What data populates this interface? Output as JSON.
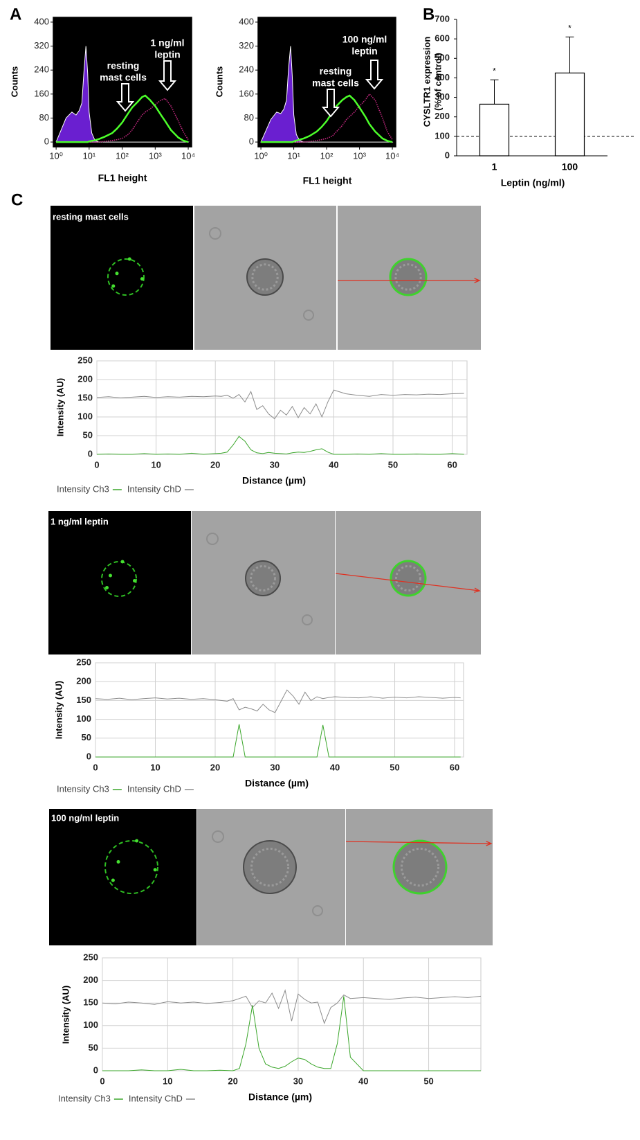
{
  "panel_labels": [
    "A",
    "B",
    "C"
  ],
  "image_captions": [
    "resting mast cells",
    "1 ng/ml leptin",
    "100 ng/ml leptin"
  ],
  "chart_data": [
    {
      "type": "line",
      "xscale": "log",
      "background": "#000000",
      "ylabel": "Counts",
      "xlabel": "FL1 height",
      "x": [
        1,
        2,
        3,
        4,
        5,
        6,
        7,
        8,
        9,
        10,
        12,
        15,
        20,
        30,
        50,
        70,
        100,
        150,
        200,
        300,
        400,
        500,
        700,
        1000,
        1500,
        2000,
        3000,
        5000,
        7000,
        10000
      ],
      "series": [
        {
          "color": "#6a1fd0",
          "fill": true,
          "values": [
            0,
            80,
            100,
            90,
            105,
            130,
            240,
            320,
            230,
            100,
            30,
            5,
            0,
            0,
            0,
            0,
            0,
            0,
            0,
            0,
            0,
            0,
            0,
            0,
            0,
            0,
            0,
            0,
            0,
            0
          ]
        },
        {
          "color": "#c0287e",
          "dash": true,
          "values": [
            0,
            0,
            0,
            0,
            0,
            0,
            0,
            0,
            0,
            0,
            0,
            0,
            0,
            2,
            5,
            8,
            12,
            25,
            40,
            70,
            90,
            100,
            110,
            125,
            140,
            145,
            120,
            70,
            35,
            8
          ]
        },
        {
          "color": "#4cff2a",
          "values": [
            0,
            0,
            0,
            0,
            0,
            0,
            0,
            0,
            0,
            2,
            4,
            6,
            10,
            18,
            30,
            45,
            65,
            95,
            115,
            135,
            150,
            155,
            140,
            120,
            90,
            70,
            40,
            15,
            5,
            0
          ]
        }
      ],
      "xlim": [
        0.82,
        12700
      ],
      "ylim": [
        -16,
        416
      ],
      "xticks": [
        {
          "value": 1,
          "label": "10⁰"
        },
        {
          "value": 10,
          "label": "10¹"
        },
        {
          "value": 100,
          "label": "10²"
        },
        {
          "value": 1000,
          "label": "10³"
        },
        {
          "value": 10000,
          "label": "10⁴"
        }
      ],
      "yticks": [
        0,
        80,
        160,
        240,
        320,
        400
      ],
      "annotations": [
        [
          "resting",
          "mast cells"
        ],
        [
          "1 ng/ml",
          "leptin"
        ]
      ]
    },
    {
      "type": "line",
      "xscale": "log",
      "background": "#000000",
      "ylabel": "Counts",
      "xlabel": "FL1 height",
      "x": [
        1,
        2,
        3,
        4,
        5,
        6,
        7,
        8,
        9,
        10,
        12,
        15,
        20,
        30,
        50,
        70,
        100,
        150,
        200,
        300,
        400,
        500,
        700,
        1000,
        1500,
        2000,
        3000,
        5000,
        7000,
        10000
      ],
      "series": [
        {
          "color": "#6a1fd0",
          "fill": true,
          "values": [
            0,
            75,
            100,
            95,
            110,
            140,
            250,
            320,
            220,
            90,
            25,
            5,
            0,
            0,
            0,
            0,
            0,
            0,
            0,
            0,
            0,
            0,
            0,
            0,
            0,
            0,
            0,
            0,
            0,
            0
          ]
        },
        {
          "color": "#c0287e",
          "dash": true,
          "values": [
            0,
            0,
            0,
            0,
            0,
            0,
            0,
            0,
            0,
            0,
            0,
            0,
            0,
            2,
            5,
            8,
            12,
            20,
            35,
            55,
            75,
            85,
            100,
            120,
            140,
            160,
            140,
            80,
            35,
            8
          ]
        },
        {
          "color": "#4cff2a",
          "values": [
            0,
            0,
            0,
            0,
            0,
            0,
            0,
            0,
            0,
            2,
            5,
            8,
            12,
            20,
            35,
            50,
            70,
            100,
            120,
            140,
            150,
            155,
            140,
            115,
            85,
            60,
            35,
            12,
            4,
            0
          ]
        }
      ],
      "xlim": [
        0.82,
        12700
      ],
      "ylim": [
        -16,
        416
      ],
      "xticks": [
        {
          "value": 1,
          "label": "10⁰"
        },
        {
          "value": 10,
          "label": "10¹"
        },
        {
          "value": 100,
          "label": "10²"
        },
        {
          "value": 1000,
          "label": "10³"
        },
        {
          "value": 10000,
          "label": "10⁴"
        }
      ],
      "yticks": [
        0,
        80,
        160,
        240,
        320,
        400
      ],
      "annotations": [
        [
          "100 ng/ml",
          "leptin"
        ],
        [
          "resting",
          "mast cells"
        ]
      ]
    },
    {
      "type": "bar",
      "ylabel": [
        "CYSLTR1 expression",
        "(% of control)"
      ],
      "xlabel": "Leptin (ng/ml)",
      "categories": [
        "1",
        "100"
      ],
      "values": [
        265,
        425
      ],
      "errors": [
        125,
        185
      ],
      "significance_labels": [
        "*",
        "*"
      ],
      "reference_line": 100,
      "color": "#ffffff",
      "edgecolor": "#000000",
      "ylim": [
        0,
        700
      ],
      "yticks": [
        0,
        100,
        200,
        300,
        400,
        500,
        600,
        700
      ]
    },
    {
      "type": "line",
      "grid": true,
      "ylabel": "Intensity (AU)",
      "xlabel": "Distance (µm)",
      "x": [
        0,
        2,
        4,
        6,
        8,
        10,
        12,
        14,
        16,
        18,
        20,
        21,
        22,
        23,
        24,
        25,
        26,
        27,
        28,
        29,
        30,
        31,
        32,
        33,
        34,
        35,
        36,
        37,
        38,
        39,
        40,
        42,
        44,
        46,
        48,
        50,
        52,
        54,
        56,
        58,
        60,
        62
      ],
      "series": [
        {
          "name": "Intensity Ch3",
          "color": "#3aa62a",
          "values": [
            0,
            1,
            0,
            0,
            2,
            0,
            1,
            0,
            3,
            0,
            2,
            3,
            6,
            25,
            48,
            35,
            12,
            4,
            2,
            5,
            3,
            2,
            1,
            4,
            6,
            5,
            8,
            12,
            15,
            6,
            0,
            0,
            1,
            0,
            2,
            0,
            0,
            1,
            0,
            0,
            2,
            0
          ]
        },
        {
          "name": "Intensity ChD",
          "color": "#8c8c8c",
          "values": [
            152,
            154,
            151,
            153,
            155,
            152,
            154,
            153,
            155,
            154,
            156,
            155,
            158,
            150,
            160,
            140,
            168,
            120,
            130,
            108,
            95,
            118,
            105,
            128,
            98,
            125,
            108,
            135,
            100,
            140,
            172,
            162,
            158,
            155,
            160,
            158,
            160,
            159,
            161,
            160,
            162,
            163
          ]
        }
      ],
      "xlim": [
        0,
        62.5
      ],
      "ylim": [
        0,
        250
      ],
      "xticks": [
        0,
        10,
        20,
        30,
        40,
        50,
        60
      ],
      "yticks": [
        0,
        50,
        100,
        150,
        200,
        250
      ]
    },
    {
      "type": "line",
      "grid": true,
      "ylabel": "Intensity (AU)",
      "xlabel": "Distance (µm)",
      "x": [
        0,
        2,
        4,
        6,
        8,
        10,
        12,
        14,
        16,
        18,
        20,
        21,
        22,
        23,
        24,
        25,
        26,
        27,
        28,
        29,
        30,
        31,
        32,
        33,
        34,
        35,
        36,
        37,
        38,
        39,
        40,
        42,
        44,
        46,
        48,
        50,
        52,
        54,
        56,
        58,
        60,
        61
      ],
      "series": [
        {
          "name": "Intensity Ch3",
          "color": "#3aa62a",
          "values": [
            0,
            0,
            0,
            0,
            0,
            0,
            0,
            0,
            0,
            0,
            0,
            0,
            0,
            0,
            87,
            0,
            0,
            0,
            0,
            0,
            0,
            0,
            0,
            0,
            0,
            0,
            0,
            0,
            85,
            0,
            0,
            0,
            0,
            0,
            0,
            0,
            0,
            0,
            0,
            0,
            0,
            0
          ]
        },
        {
          "name": "Intensity ChD",
          "color": "#8c8c8c",
          "values": [
            155,
            153,
            156,
            152,
            155,
            157,
            154,
            156,
            153,
            155,
            152,
            150,
            148,
            155,
            125,
            132,
            128,
            122,
            140,
            125,
            118,
            148,
            178,
            162,
            140,
            172,
            150,
            160,
            155,
            158,
            160,
            158,
            157,
            160,
            156,
            159,
            157,
            160,
            158,
            156,
            158,
            157
          ]
        }
      ],
      "xlim": [
        0,
        61.5
      ],
      "ylim": [
        0,
        250
      ],
      "xticks": [
        0,
        10,
        20,
        30,
        40,
        50,
        60
      ],
      "yticks": [
        0,
        50,
        100,
        150,
        200,
        250
      ]
    },
    {
      "type": "line",
      "grid": true,
      "ylabel": "Intensity (AU)",
      "xlabel": "Distance (µm)",
      "x": [
        0,
        2,
        4,
        6,
        8,
        10,
        12,
        14,
        16,
        18,
        20,
        21,
        22,
        23,
        24,
        25,
        26,
        27,
        28,
        29,
        30,
        31,
        32,
        33,
        34,
        35,
        36,
        37,
        38,
        40,
        42,
        44,
        46,
        48,
        50,
        52,
        54,
        56,
        58
      ],
      "series": [
        {
          "name": "Intensity Ch3",
          "color": "#3aa62a",
          "values": [
            0,
            0,
            0,
            2,
            0,
            0,
            3,
            0,
            0,
            1,
            0,
            5,
            60,
            145,
            50,
            15,
            8,
            5,
            10,
            20,
            28,
            25,
            15,
            8,
            5,
            5,
            60,
            165,
            30,
            0,
            0,
            0,
            0,
            0,
            0,
            0,
            0,
            0,
            0
          ]
        },
        {
          "name": "Intensity ChD",
          "color": "#8c8c8c",
          "values": [
            150,
            148,
            152,
            150,
            147,
            153,
            150,
            152,
            149,
            151,
            155,
            160,
            165,
            140,
            155,
            150,
            172,
            138,
            178,
            110,
            170,
            158,
            150,
            152,
            105,
            140,
            150,
            168,
            160,
            162,
            160,
            158,
            161,
            163,
            160,
            162,
            164,
            162,
            165
          ]
        }
      ],
      "xlim": [
        0,
        58
      ],
      "ylim": [
        0,
        250
      ],
      "xticks": [
        0,
        10,
        20,
        30,
        40,
        50
      ],
      "yticks": [
        0,
        50,
        100,
        150,
        200,
        250
      ]
    }
  ]
}
